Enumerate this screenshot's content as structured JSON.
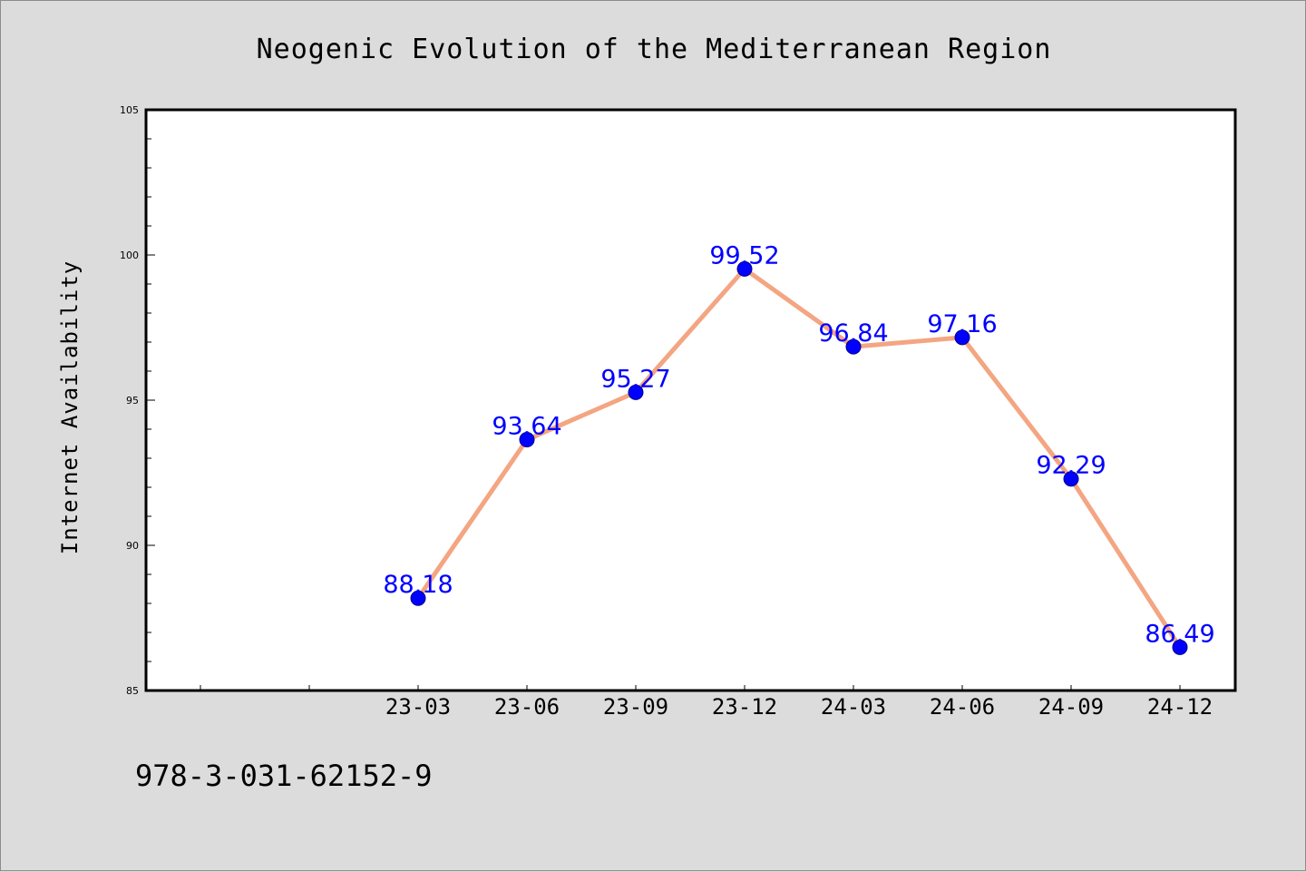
{
  "chart_data": {
    "type": "line",
    "title": "Neogenic Evolution of the Mediterranean Region",
    "xlabel": "",
    "ylabel": "Internet Availability",
    "categories": [
      "23-03",
      "23-06",
      "23-09",
      "23-12",
      "24-03",
      "24-06",
      "24-09",
      "24-12"
    ],
    "series": [
      {
        "values": [
          88.18,
          93.64,
          95.27,
          99.52,
          96.84,
          97.16,
          92.29,
          86.49
        ],
        "labels": [
          "88.18",
          "93.64",
          "95.27",
          "99.52",
          "96.84",
          "97.16",
          "92.29",
          "86.49"
        ]
      }
    ],
    "ylim": [
      85,
      105
    ],
    "yticks": [
      "85",
      "90",
      "95",
      "100",
      "105"
    ],
    "grid": false,
    "line_color": "#f4a582",
    "marker_color": "#0000ff"
  },
  "footer": {
    "isbn": "978-3-031-62152-9"
  }
}
